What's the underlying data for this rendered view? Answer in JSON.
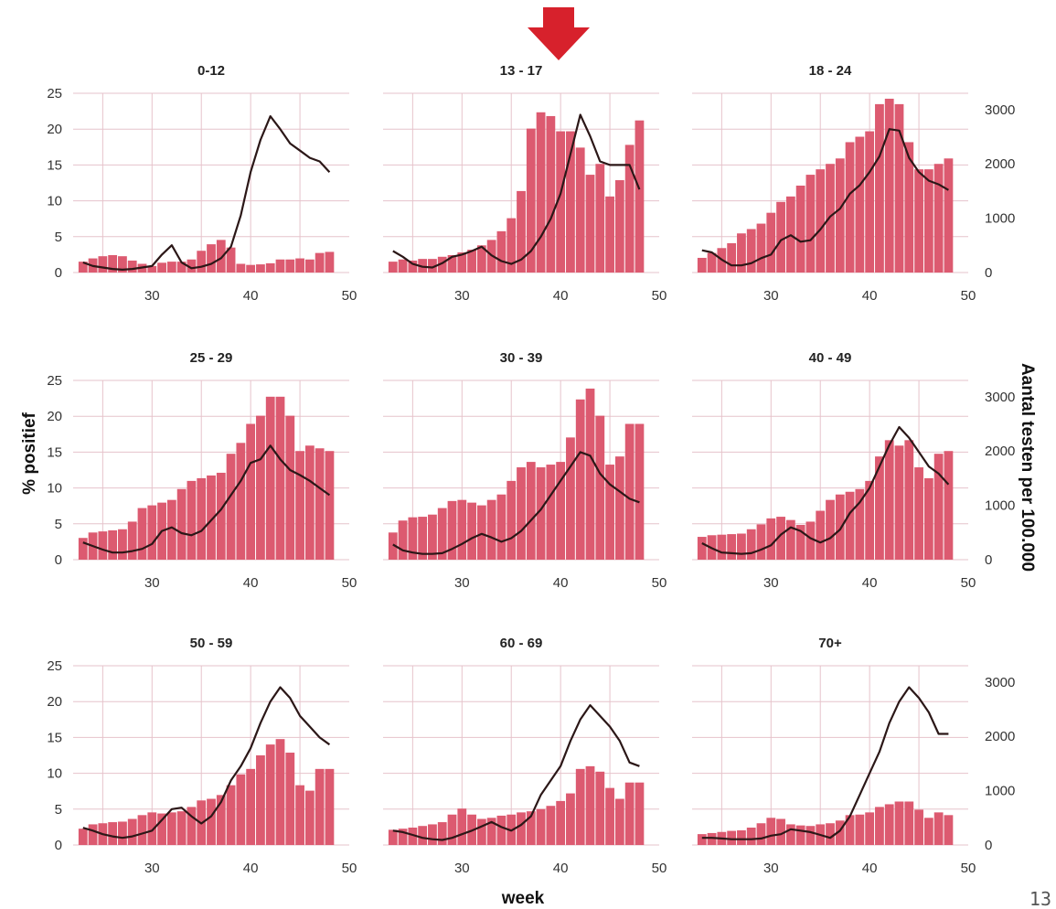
{
  "page_number": "13",
  "chart_data": {
    "type": "bar",
    "xlabel": "week",
    "ylabel": "% positief",
    "y2label": "Aantal testen per 100.000",
    "xlim": [
      22,
      50
    ],
    "ylim": [
      0,
      25
    ],
    "y2lim": [
      0,
      3300
    ],
    "xticks": [
      30,
      40,
      50
    ],
    "yticks": [
      0,
      5,
      10,
      15,
      20,
      25
    ],
    "y2ticks": [
      0,
      1000,
      2000,
      3000
    ],
    "x": [
      23,
      24,
      25,
      26,
      27,
      28,
      29,
      30,
      31,
      32,
      33,
      34,
      35,
      36,
      37,
      38,
      39,
      40,
      41,
      42,
      43,
      44,
      45,
      46,
      47,
      48
    ],
    "grid": true,
    "colors": {
      "bars": "#dc5a70",
      "line": "#2b1717",
      "grid": "#e6c3cb",
      "arrow": "#d7212c"
    },
    "highlight_panel": "13 - 17",
    "panels": [
      {
        "title": "0-12",
        "tests_per_100000": [
          200,
          260,
          300,
          320,
          300,
          220,
          160,
          120,
          180,
          200,
          200,
          240,
          400,
          520,
          600,
          460,
          160,
          140,
          150,
          170,
          240,
          240,
          260,
          240,
          360,
          380
        ],
        "percent_positive": [
          1.4,
          0.9,
          0.7,
          0.5,
          0.4,
          0.5,
          0.7,
          0.9,
          2.5,
          3.8,
          1.4,
          0.6,
          0.8,
          1.2,
          2.0,
          3.6,
          8.0,
          14.0,
          18.5,
          21.8,
          20.0,
          18.0,
          17.0,
          16.0,
          15.5,
          14.0
        ]
      },
      {
        "title": "13 - 17",
        "tests_per_100000": [
          200,
          240,
          220,
          250,
          250,
          290,
          320,
          370,
          420,
          500,
          600,
          760,
          1000,
          1500,
          2650,
          2950,
          2880,
          2600,
          2600,
          2300,
          1800,
          2000,
          1400,
          1700,
          2350,
          2800
        ],
        "percent_positive": [
          3.0,
          2.2,
          1.2,
          0.8,
          0.7,
          1.3,
          2.2,
          2.5,
          3.0,
          3.6,
          2.4,
          1.6,
          1.2,
          1.8,
          3.0,
          5.0,
          7.5,
          11.0,
          16.5,
          22.0,
          19.0,
          15.5,
          15.0,
          15.0,
          15.0,
          11.6
        ]
      },
      {
        "title": "18 - 24",
        "tests_per_100000": [
          270,
          360,
          450,
          540,
          720,
          800,
          900,
          1100,
          1300,
          1400,
          1600,
          1800,
          1900,
          2000,
          2100,
          2400,
          2500,
          2600,
          3100,
          3200,
          3100,
          2400,
          1900,
          1900,
          2000,
          2100
        ],
        "percent_positive": [
          3.1,
          2.8,
          1.8,
          1.0,
          1.0,
          1.3,
          2.0,
          2.5,
          4.5,
          5.2,
          4.3,
          4.5,
          6.0,
          7.8,
          8.9,
          11.0,
          12.2,
          14.0,
          16.2,
          20.0,
          19.8,
          16.0,
          14.0,
          12.8,
          12.3,
          11.5
        ]
      },
      {
        "title": "25 - 29",
        "tests_per_100000": [
          400,
          500,
          520,
          540,
          560,
          700,
          950,
          1000,
          1050,
          1100,
          1300,
          1450,
          1500,
          1550,
          1600,
          1950,
          2150,
          2500,
          2650,
          3000,
          3000,
          2650,
          2000,
          2100,
          2050,
          2000
        ],
        "percent_positive": [
          2.4,
          1.9,
          1.4,
          1.0,
          1.0,
          1.2,
          1.5,
          2.2,
          4.0,
          4.5,
          3.7,
          3.4,
          4.0,
          5.5,
          7.0,
          9.0,
          11.0,
          13.5,
          14.0,
          15.9,
          14.0,
          12.5,
          11.8,
          11.0,
          10.0,
          9.0
        ]
      },
      {
        "title": "30 - 39",
        "tests_per_100000": [
          500,
          720,
          780,
          790,
          830,
          950,
          1080,
          1100,
          1050,
          1000,
          1100,
          1200,
          1450,
          1700,
          1800,
          1700,
          1750,
          1800,
          2250,
          2950,
          3150,
          2650,
          1750,
          1900,
          2500,
          2500
        ],
        "percent_positive": [
          2.1,
          1.3,
          1.0,
          0.8,
          0.8,
          0.9,
          1.5,
          2.2,
          3.0,
          3.6,
          3.1,
          2.5,
          3.0,
          4.0,
          5.5,
          7.0,
          9.0,
          11.0,
          13.0,
          15.0,
          14.5,
          12.0,
          10.5,
          9.5,
          8.5,
          8.0
        ]
      },
      {
        "title": "40 - 49",
        "tests_per_100000": [
          420,
          450,
          460,
          470,
          480,
          560,
          650,
          760,
          790,
          730,
          640,
          700,
          900,
          1100,
          1200,
          1250,
          1300,
          1450,
          1900,
          2200,
          2100,
          2200,
          1700,
          1500,
          1950,
          2000
        ],
        "percent_positive": [
          2.3,
          1.6,
          1.0,
          0.9,
          0.8,
          0.9,
          1.4,
          2.0,
          3.5,
          4.5,
          4.0,
          3.0,
          2.4,
          3.0,
          4.2,
          6.5,
          8.0,
          10.0,
          13.0,
          16.0,
          18.5,
          17.0,
          15.0,
          13.0,
          12.0,
          10.5
        ]
      },
      {
        "title": "50 - 59",
        "tests_per_100000": [
          300,
          380,
          400,
          420,
          430,
          480,
          550,
          600,
          580,
          600,
          620,
          700,
          820,
          850,
          920,
          1100,
          1300,
          1400,
          1650,
          1850,
          1950,
          1700,
          1100,
          1000,
          1400,
          1400
        ],
        "percent_positive": [
          2.4,
          2.0,
          1.5,
          1.2,
          1.0,
          1.2,
          1.6,
          2.0,
          3.5,
          5.0,
          5.2,
          4.0,
          3.0,
          4.0,
          6.0,
          9.0,
          11.0,
          13.5,
          17.0,
          20.0,
          22.0,
          20.5,
          18.0,
          16.5,
          15.0,
          14.0
        ]
      },
      {
        "title": "60 - 69",
        "tests_per_100000": [
          280,
          300,
          320,
          350,
          380,
          420,
          560,
          670,
          560,
          480,
          500,
          540,
          560,
          600,
          620,
          660,
          720,
          810,
          950,
          1400,
          1450,
          1350,
          1050,
          850,
          1150,
          1150
        ],
        "percent_positive": [
          2.0,
          1.8,
          1.4,
          1.0,
          0.8,
          0.7,
          1.0,
          1.5,
          2.0,
          2.6,
          3.2,
          2.5,
          2.0,
          2.8,
          4.0,
          7.0,
          9.0,
          11.0,
          14.5,
          17.5,
          19.5,
          18.0,
          16.5,
          14.5,
          11.5,
          11.0
        ]
      },
      {
        "title": "70+",
        "tests_per_100000": [
          200,
          220,
          240,
          260,
          270,
          320,
          400,
          500,
          480,
          380,
          360,
          350,
          380,
          400,
          450,
          550,
          560,
          600,
          700,
          750,
          800,
          800,
          650,
          500,
          600,
          550
        ],
        "percent_positive": [
          1.0,
          1.0,
          0.9,
          0.8,
          0.8,
          0.8,
          0.9,
          1.3,
          1.5,
          2.2,
          2.0,
          1.8,
          1.4,
          1.0,
          2.0,
          4.0,
          7.0,
          10.0,
          13.0,
          17.0,
          20.0,
          22.0,
          20.5,
          18.5,
          15.5,
          15.5
        ]
      }
    ]
  }
}
